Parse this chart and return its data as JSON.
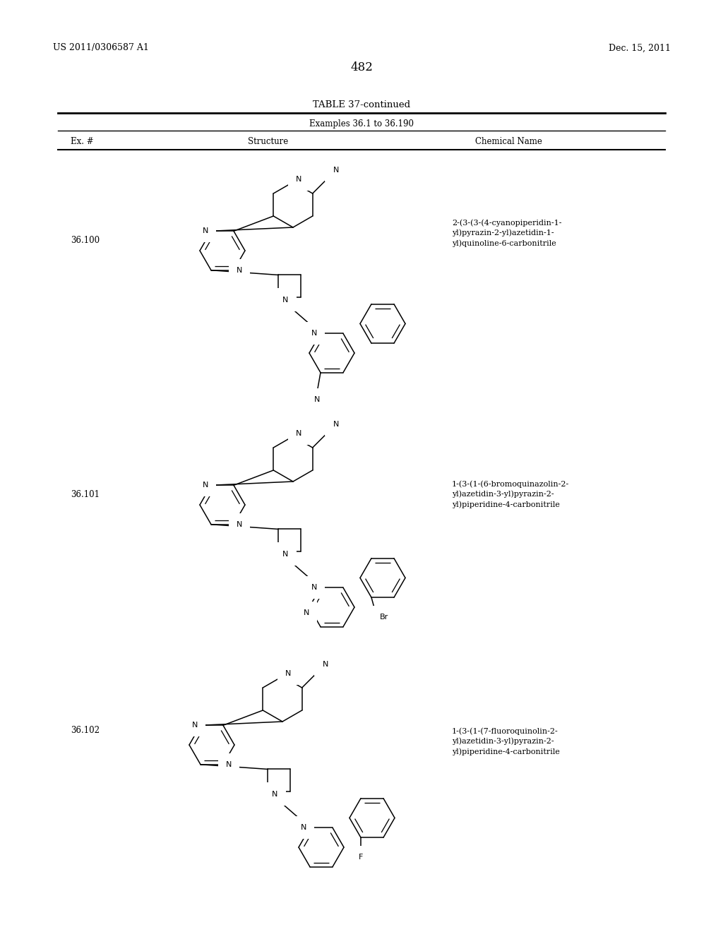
{
  "page_number": "482",
  "patent_number": "US 2011/0306587 A1",
  "patent_date": "Dec. 15, 2011",
  "table_title": "TABLE 37-continued",
  "table_subtitle": "Examples 36.1 to 36.190",
  "col_headers": [
    "Ex. #",
    "Structure",
    "Chemical Name"
  ],
  "background_color": "#ffffff",
  "entries": [
    {
      "ex_num": "36.100",
      "chem_name": "2-(3-(3-(4-cyanopiperidin-1-\nyl)pyrazin-2-yl)azetidin-1-\nyl)quinoline-6-carbonitrile"
    },
    {
      "ex_num": "36.101",
      "chem_name": "1-(3-(1-(6-bromoquinazolin-2-\nyl)azetidin-3-yl)pyrazin-2-\nyl)piperidine-4-carbonitrile"
    },
    {
      "ex_num": "36.102",
      "chem_name": "1-(3-(1-(7-fluoroquinolin-2-\nyl)azetidin-3-yl)pyrazin-2-\nyl)piperidine-4-carbonitrile"
    }
  ]
}
